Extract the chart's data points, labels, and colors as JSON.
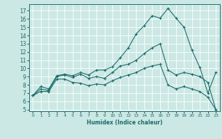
{
  "xlabel": "Humidex (Indice chaleur)",
  "x_ticks": [
    0,
    1,
    2,
    3,
    4,
    5,
    6,
    7,
    8,
    9,
    10,
    11,
    12,
    13,
    14,
    15,
    16,
    17,
    18,
    19,
    20,
    21,
    22,
    23
  ],
  "y_ticks": [
    5,
    6,
    7,
    8,
    9,
    10,
    11,
    12,
    13,
    14,
    15,
    16,
    17
  ],
  "xlim": [
    -0.5,
    23.5
  ],
  "ylim": [
    4.8,
    17.8
  ],
  "bg_color": "#cce8e4",
  "line_color": "#1a6b6b",
  "grid_color": "#ffffff",
  "series1": [
    6.7,
    7.8,
    7.5,
    9.1,
    9.3,
    9.1,
    9.5,
    9.2,
    9.8,
    9.8,
    10.2,
    11.3,
    12.5,
    14.2,
    15.2,
    16.4,
    16.1,
    17.3,
    16.1,
    15.0,
    12.2,
    10.1,
    7.0,
    9.5
  ],
  "series2": [
    6.7,
    7.5,
    7.3,
    9.0,
    9.2,
    8.9,
    9.3,
    8.8,
    9.0,
    8.8,
    9.5,
    10.3,
    10.5,
    11.0,
    11.8,
    12.5,
    13.0,
    9.8,
    9.2,
    9.5,
    9.3,
    9.0,
    8.3,
    5.0
  ],
  "series3": [
    6.7,
    7.2,
    7.2,
    8.7,
    8.7,
    8.3,
    8.2,
    7.9,
    8.1,
    8.0,
    8.5,
    8.9,
    9.2,
    9.5,
    10.0,
    10.3,
    10.5,
    8.0,
    7.5,
    7.8,
    7.5,
    7.2,
    6.5,
    5.0
  ]
}
